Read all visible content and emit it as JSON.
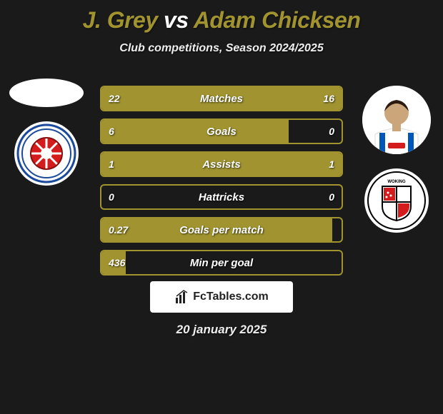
{
  "title": {
    "player1": "J. Grey",
    "vs": "vs",
    "player2": "Adam Chicksen"
  },
  "subtitle": "Club competitions, Season 2024/2025",
  "stats": [
    {
      "label": "Matches",
      "left_val": "22",
      "right_val": "16",
      "left_pct": 58,
      "right_pct": 42
    },
    {
      "label": "Goals",
      "left_val": "6",
      "right_val": "0",
      "left_pct": 78,
      "right_pct": 0
    },
    {
      "label": "Assists",
      "left_val": "1",
      "right_val": "1",
      "left_pct": 50,
      "right_pct": 50
    },
    {
      "label": "Hattricks",
      "left_val": "0",
      "right_val": "0",
      "left_pct": 0,
      "right_pct": 0
    },
    {
      "label": "Goals per match",
      "left_val": "0.27",
      "right_val": "",
      "left_pct": 96,
      "right_pct": 0
    },
    {
      "label": "Min per goal",
      "left_val": "436",
      "right_val": "",
      "left_pct": 10,
      "right_pct": 0
    }
  ],
  "footer_brand": "FcTables.com",
  "date": "20 january 2025",
  "colors": {
    "accent": "#a09330",
    "bg": "#1a1a1a",
    "text": "#ffffff",
    "brand_bg": "#ffffff",
    "brand_text": "#222222"
  },
  "left_side": {
    "player_name": "J. Grey",
    "club_name": "Hartlepool United FC",
    "club_colors": {
      "bg": "#ffffff",
      "ring": "#1b4a9c",
      "wheel": "#d51c1c"
    }
  },
  "right_side": {
    "player_name": "Adam Chicksen",
    "club_name": "Woking",
    "club_colors": {
      "bg": "#ffffff",
      "shield_border": "#000000",
      "shield_fill": "#d51c1c"
    },
    "kit_colors": {
      "shirt": "#ffffff",
      "stripes": "#0057b8",
      "sponsor": "#d51c1c"
    }
  }
}
